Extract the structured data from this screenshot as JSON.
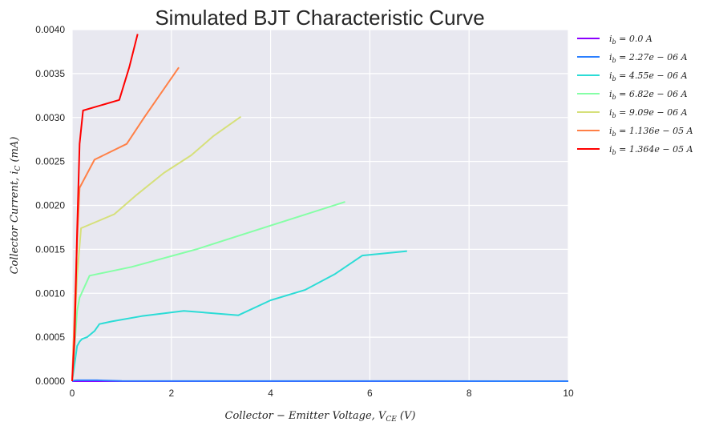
{
  "chart_data": {
    "type": "line",
    "title": "Simulated BJT Characteristic Curve",
    "xlabel": "Collector − Emitter Voltage, V_CE (V)",
    "ylabel": "Collector Current, i_C (mA)",
    "xlim": [
      0,
      10
    ],
    "ylim": [
      0,
      0.004
    ],
    "x_ticks": [
      "0",
      "2",
      "4",
      "6",
      "8",
      "10"
    ],
    "y_ticks": [
      "0.0000",
      "0.0005",
      "0.0010",
      "0.0015",
      "0.0020",
      "0.0025",
      "0.0030",
      "0.0035",
      "0.0040"
    ],
    "x_tick_values": [
      0,
      2,
      4,
      6,
      8,
      10
    ],
    "y_tick_values": [
      0,
      0.0005,
      0.001,
      0.0015,
      0.002,
      0.0025,
      0.003,
      0.0035,
      0.004
    ],
    "grid": true,
    "legend_position": "outside-right",
    "background": "#e8e8f0",
    "series": [
      {
        "name": "i_b = 0.0 A",
        "color": "#8b00ff",
        "x": [
          0,
          10
        ],
        "y": [
          0,
          0
        ]
      },
      {
        "name": "i_b = 2.27e−06 A",
        "color": "#2a7fff",
        "x": [
          0,
          0.02,
          0.05,
          0.1,
          0.5,
          1,
          10
        ],
        "y": [
          0,
          5e-06,
          8e-06,
          1e-05,
          1e-05,
          2e-06,
          0
        ]
      },
      {
        "name": "i_b = 4.55e−06 A",
        "color": "#2cdcd6",
        "x": [
          0,
          0.05,
          0.1,
          0.15,
          0.2,
          0.3,
          0.45,
          0.55,
          0.8,
          1.4,
          2.25,
          3.35,
          4,
          4.7,
          5.3,
          5.85,
          6.75
        ],
        "y": [
          0,
          0.0002,
          0.0004,
          0.00045,
          0.00048,
          0.0005,
          0.00057,
          0.00065,
          0.00068,
          0.00074,
          0.0008,
          0.00075,
          0.00092,
          0.00104,
          0.00122,
          0.00143,
          0.00148
        ]
      },
      {
        "name": "i_b = 6.82e−06 A",
        "color": "#85ffa6",
        "x": [
          0,
          0.05,
          0.1,
          0.15,
          0.35,
          1.2,
          2.5,
          4.0,
          5.5
        ],
        "y": [
          0,
          0.0004,
          0.0008,
          0.00095,
          0.0012,
          0.0013,
          0.0015,
          0.00177,
          0.00204
        ]
      },
      {
        "name": "i_b = 9.09e−06 A",
        "color": "#d6e07a",
        "x": [
          0,
          0.05,
          0.1,
          0.18,
          0.85,
          1.3,
          1.85,
          2.4,
          2.85,
          3.4
        ],
        "y": [
          0,
          0.0006,
          0.0012,
          0.00174,
          0.0019,
          0.00212,
          0.00237,
          0.00257,
          0.00279,
          0.00301
        ]
      },
      {
        "name": "i_b = 1.136e−05 A",
        "color": "#ff8047",
        "x": [
          0,
          0.05,
          0.1,
          0.15,
          0.45,
          1.1,
          1.45,
          2.15
        ],
        "y": [
          0,
          0.0008,
          0.0016,
          0.0022,
          0.00252,
          0.0027,
          0.003,
          0.00357
        ]
      },
      {
        "name": "i_b = 1.364e−05 A",
        "color": "#ff0000",
        "x": [
          0,
          0.05,
          0.1,
          0.15,
          0.22,
          0.95,
          1.15,
          1.32
        ],
        "y": [
          0,
          0.0005,
          0.0017,
          0.0027,
          0.00308,
          0.0032,
          0.00357,
          0.00395
        ]
      }
    ],
    "legend_entries": [
      {
        "base": "i",
        "sub": "b",
        "rest": " = 0.0 A"
      },
      {
        "base": "i",
        "sub": "b",
        "rest": " = 2.27e − 06 A"
      },
      {
        "base": "i",
        "sub": "b",
        "rest": " = 4.55e − 06 A"
      },
      {
        "base": "i",
        "sub": "b",
        "rest": " = 6.82e − 06 A"
      },
      {
        "base": "i",
        "sub": "b",
        "rest": " = 9.09e − 06 A"
      },
      {
        "base": "i",
        "sub": "b",
        "rest": " = 1.136e − 05 A"
      },
      {
        "base": "i",
        "sub": "b",
        "rest": " = 1.364e − 05 A"
      }
    ]
  }
}
